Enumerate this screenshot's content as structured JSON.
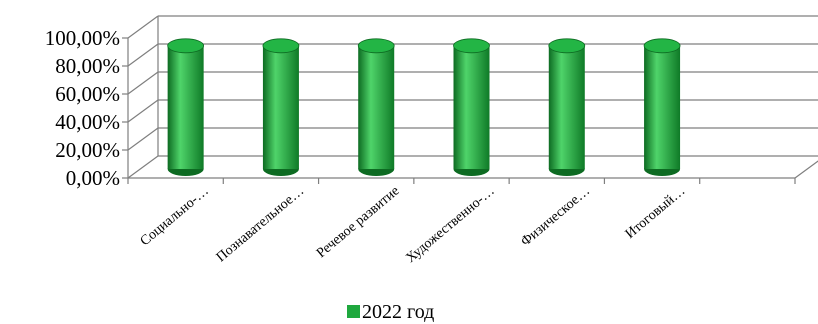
{
  "chart_data": {
    "type": "bar",
    "title": "",
    "xlabel": "",
    "ylabel": "",
    "categories": [
      "Социально-…",
      "Познавательное…",
      "Речевое развитие",
      "Художественно-…",
      "Физическое…",
      "Итоговый…"
    ],
    "series": [
      {
        "name": "2022 год",
        "values": [
          0.88,
          0.88,
          0.88,
          0.88,
          0.88,
          0.88
        ]
      }
    ],
    "y_ticks": [
      "0,00%",
      "20,00%",
      "40,00%",
      "60,00%",
      "80,00%",
      "100,00%"
    ],
    "ylim": [
      0,
      1
    ],
    "legend_position": "bottom",
    "grid": true,
    "style": "3d-cylinder",
    "colors": {
      "bar": "#1fa83e",
      "bar_dark": "#0d6b22",
      "bar_light": "#4fd46a",
      "bar_top": "#23b545",
      "legend_swatch": "#1fa83e",
      "grid": "#7f7f7f"
    }
  }
}
